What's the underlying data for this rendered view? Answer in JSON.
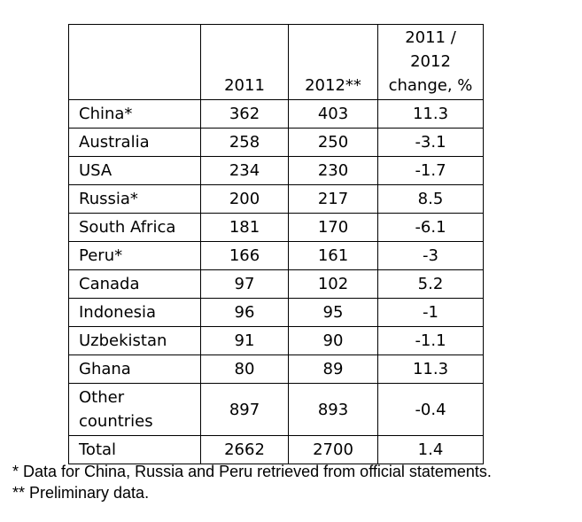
{
  "chart_data": {
    "type": "table",
    "columns": [
      "",
      "2011",
      "2012**",
      "2011 / 2012 change, %"
    ],
    "header_lines": [
      "2011 /",
      "2012",
      "change, %"
    ],
    "rows": [
      {
        "label": "China*",
        "y2011": "362",
        "y2012": "403",
        "change": "11.3"
      },
      {
        "label": "Australia",
        "y2011": "258",
        "y2012": "250",
        "change": "-3.1"
      },
      {
        "label": "USA",
        "y2011": "234",
        "y2012": "230",
        "change": "-1.7"
      },
      {
        "label": "Russia*",
        "y2011": "200",
        "y2012": "217",
        "change": "8.5"
      },
      {
        "label": "South Africa",
        "y2011": "181",
        "y2012": "170",
        "change": "-6.1"
      },
      {
        "label": "Peru*",
        "y2011": "166",
        "y2012": "161",
        "change": "-3"
      },
      {
        "label": "Canada",
        "y2011": "97",
        "y2012": "102",
        "change": "5.2"
      },
      {
        "label": "Indonesia",
        "y2011": "96",
        "y2012": "95",
        "change": "-1"
      },
      {
        "label": "Uzbekistan",
        "y2011": "91",
        "y2012": "90",
        "change": "-1.1"
      },
      {
        "label": "Ghana",
        "y2011": "80",
        "y2012": "89",
        "change": "11.3"
      },
      {
        "label_lines": [
          "Other",
          "countries"
        ],
        "y2011": "897",
        "y2012": "893",
        "change": "-0.4"
      },
      {
        "label": "Total",
        "y2011": "2662",
        "y2012": "2700",
        "change": "1.4"
      }
    ]
  },
  "notes": [
    "* Data for China, Russia and Peru retrieved from official statements.",
    "** Preliminary data."
  ]
}
